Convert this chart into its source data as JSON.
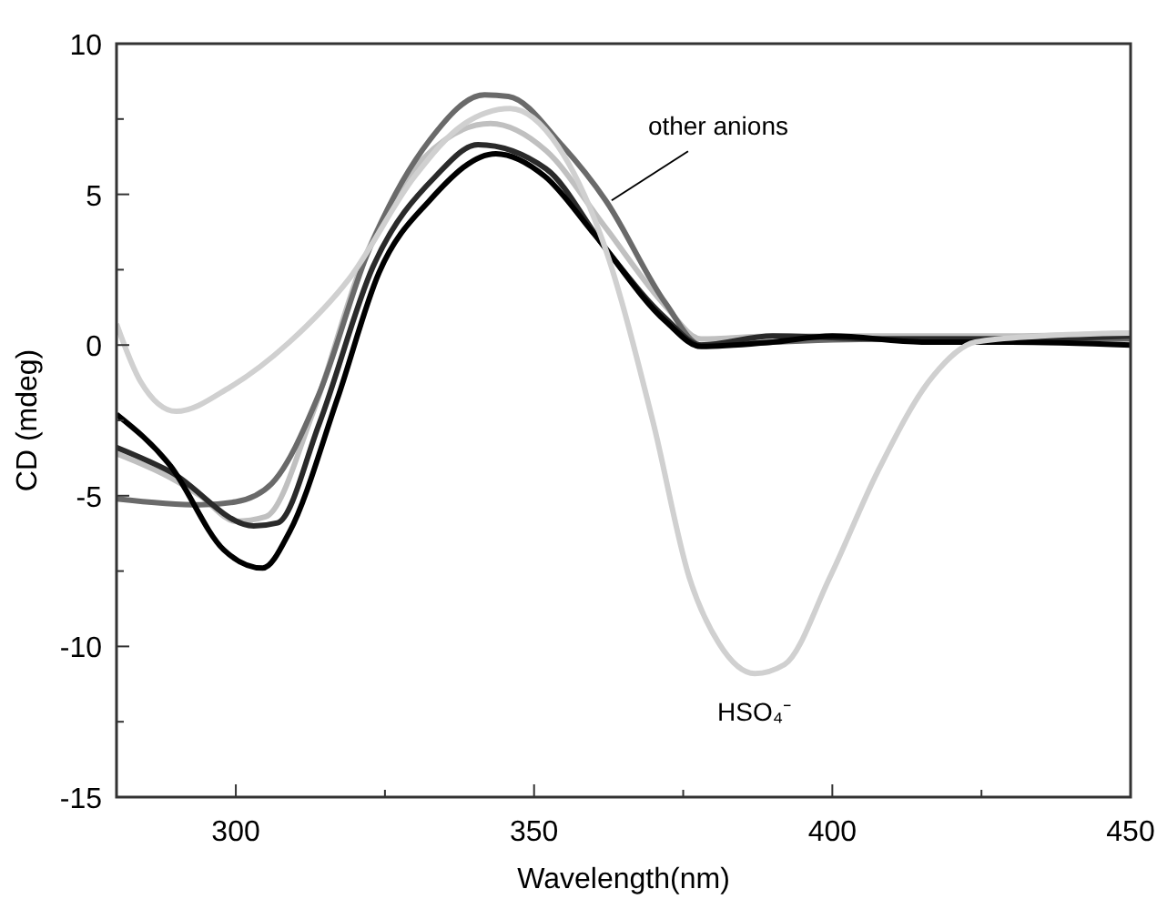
{
  "chart_data": {
    "type": "line",
    "xlabel": "Wavelength(nm)",
    "ylabel": "CD (mdeg)",
    "xlim": [
      280,
      450
    ],
    "ylim": [
      -15,
      10
    ],
    "xticks": [
      300,
      {
        "value": 325,
        "label": null
      },
      350,
      {
        "value": 375,
        "label": null
      },
      400,
      {
        "value": 425,
        "label": null
      },
      450
    ],
    "yticks": [
      -15,
      {
        "value": -12.5,
        "label": null
      },
      -10,
      {
        "value": -7.5,
        "label": null
      },
      -5,
      {
        "value": -2.5,
        "label": null
      },
      0,
      {
        "value": 2.5,
        "label": null
      },
      5,
      {
        "value": 7.5,
        "label": null
      },
      10
    ],
    "grid": false,
    "marker": "none",
    "line_style": "solid",
    "annotations": [
      {
        "text": "other anions",
        "x": 363,
        "y": 4.8
      }
    ],
    "series": [
      {
        "color": "#c0c0c0",
        "x": [
          280,
          289,
          294,
          300,
          305,
          313,
          321,
          331.5,
          342.7,
          352,
          361.6,
          372,
          378,
          390,
          410,
          430,
          450
        ],
        "values": [
          -3.6,
          -4.4,
          -5.0,
          -5.85,
          -5.7,
          -2.2,
          2.6,
          6.2,
          7.35,
          6.45,
          4.0,
          1.3,
          0.2,
          0.3,
          0.3,
          0.3,
          0.4
        ]
      },
      {
        "color": "#6a6a6a",
        "x": [
          280,
          294,
          300,
          306,
          314,
          322,
          332.5,
          341.7,
          345.7,
          354.8,
          362,
          372,
          378,
          390,
          410,
          430,
          450
        ],
        "values": [
          -5.1,
          -5.3,
          -5.2,
          -4.6,
          -1.6,
          3.0,
          6.8,
          8.3,
          8.25,
          6.6,
          4.8,
          1.4,
          0.0,
          0.1,
          0.2,
          0.2,
          0.2
        ]
      },
      {
        "color": "#2a2a2a",
        "x": [
          280,
          289,
          303,
          307,
          314,
          323,
          333.5,
          340.6,
          352,
          362,
          372,
          378,
          390,
          410,
          430,
          450
        ],
        "values": [
          -3.4,
          -4.2,
          -6.0,
          -5.9,
          -2.6,
          2.6,
          5.6,
          6.65,
          5.85,
          3.2,
          0.9,
          0.0,
          0.3,
          0.2,
          0.2,
          0.3
        ]
      },
      {
        "color": "#000000",
        "x": [
          280,
          289,
          298,
          304.5,
          309,
          317,
          324,
          332.5,
          343.6,
          351.8,
          360,
          372,
          378,
          390,
          400,
          415,
          430,
          450
        ],
        "values": [
          -2.3,
          -4.0,
          -6.8,
          -7.4,
          -6.2,
          -1.8,
          2.4,
          4.8,
          6.35,
          5.6,
          3.7,
          0.8,
          -0.05,
          0.1,
          0.3,
          0.1,
          0.1,
          0.0
        ]
      },
      {
        "name": "HSO₄⁻",
        "color": "#d0d0d0",
        "x": [
          280,
          284,
          290,
          299,
          309,
          319,
          330,
          338,
          346,
          354,
          361.6,
          370,
          376,
          381,
          387,
          392,
          399.6,
          407.6,
          417,
          424,
          435,
          450
        ],
        "values": [
          0.7,
          -1.2,
          -2.2,
          -1.4,
          0.1,
          2.2,
          5.6,
          7.3,
          7.85,
          6.6,
          3.4,
          -2.6,
          -7.7,
          -9.9,
          -10.9,
          -10.6,
          -7.7,
          -4.2,
          -1.0,
          0.1,
          0.3,
          0.4
        ]
      }
    ]
  }
}
